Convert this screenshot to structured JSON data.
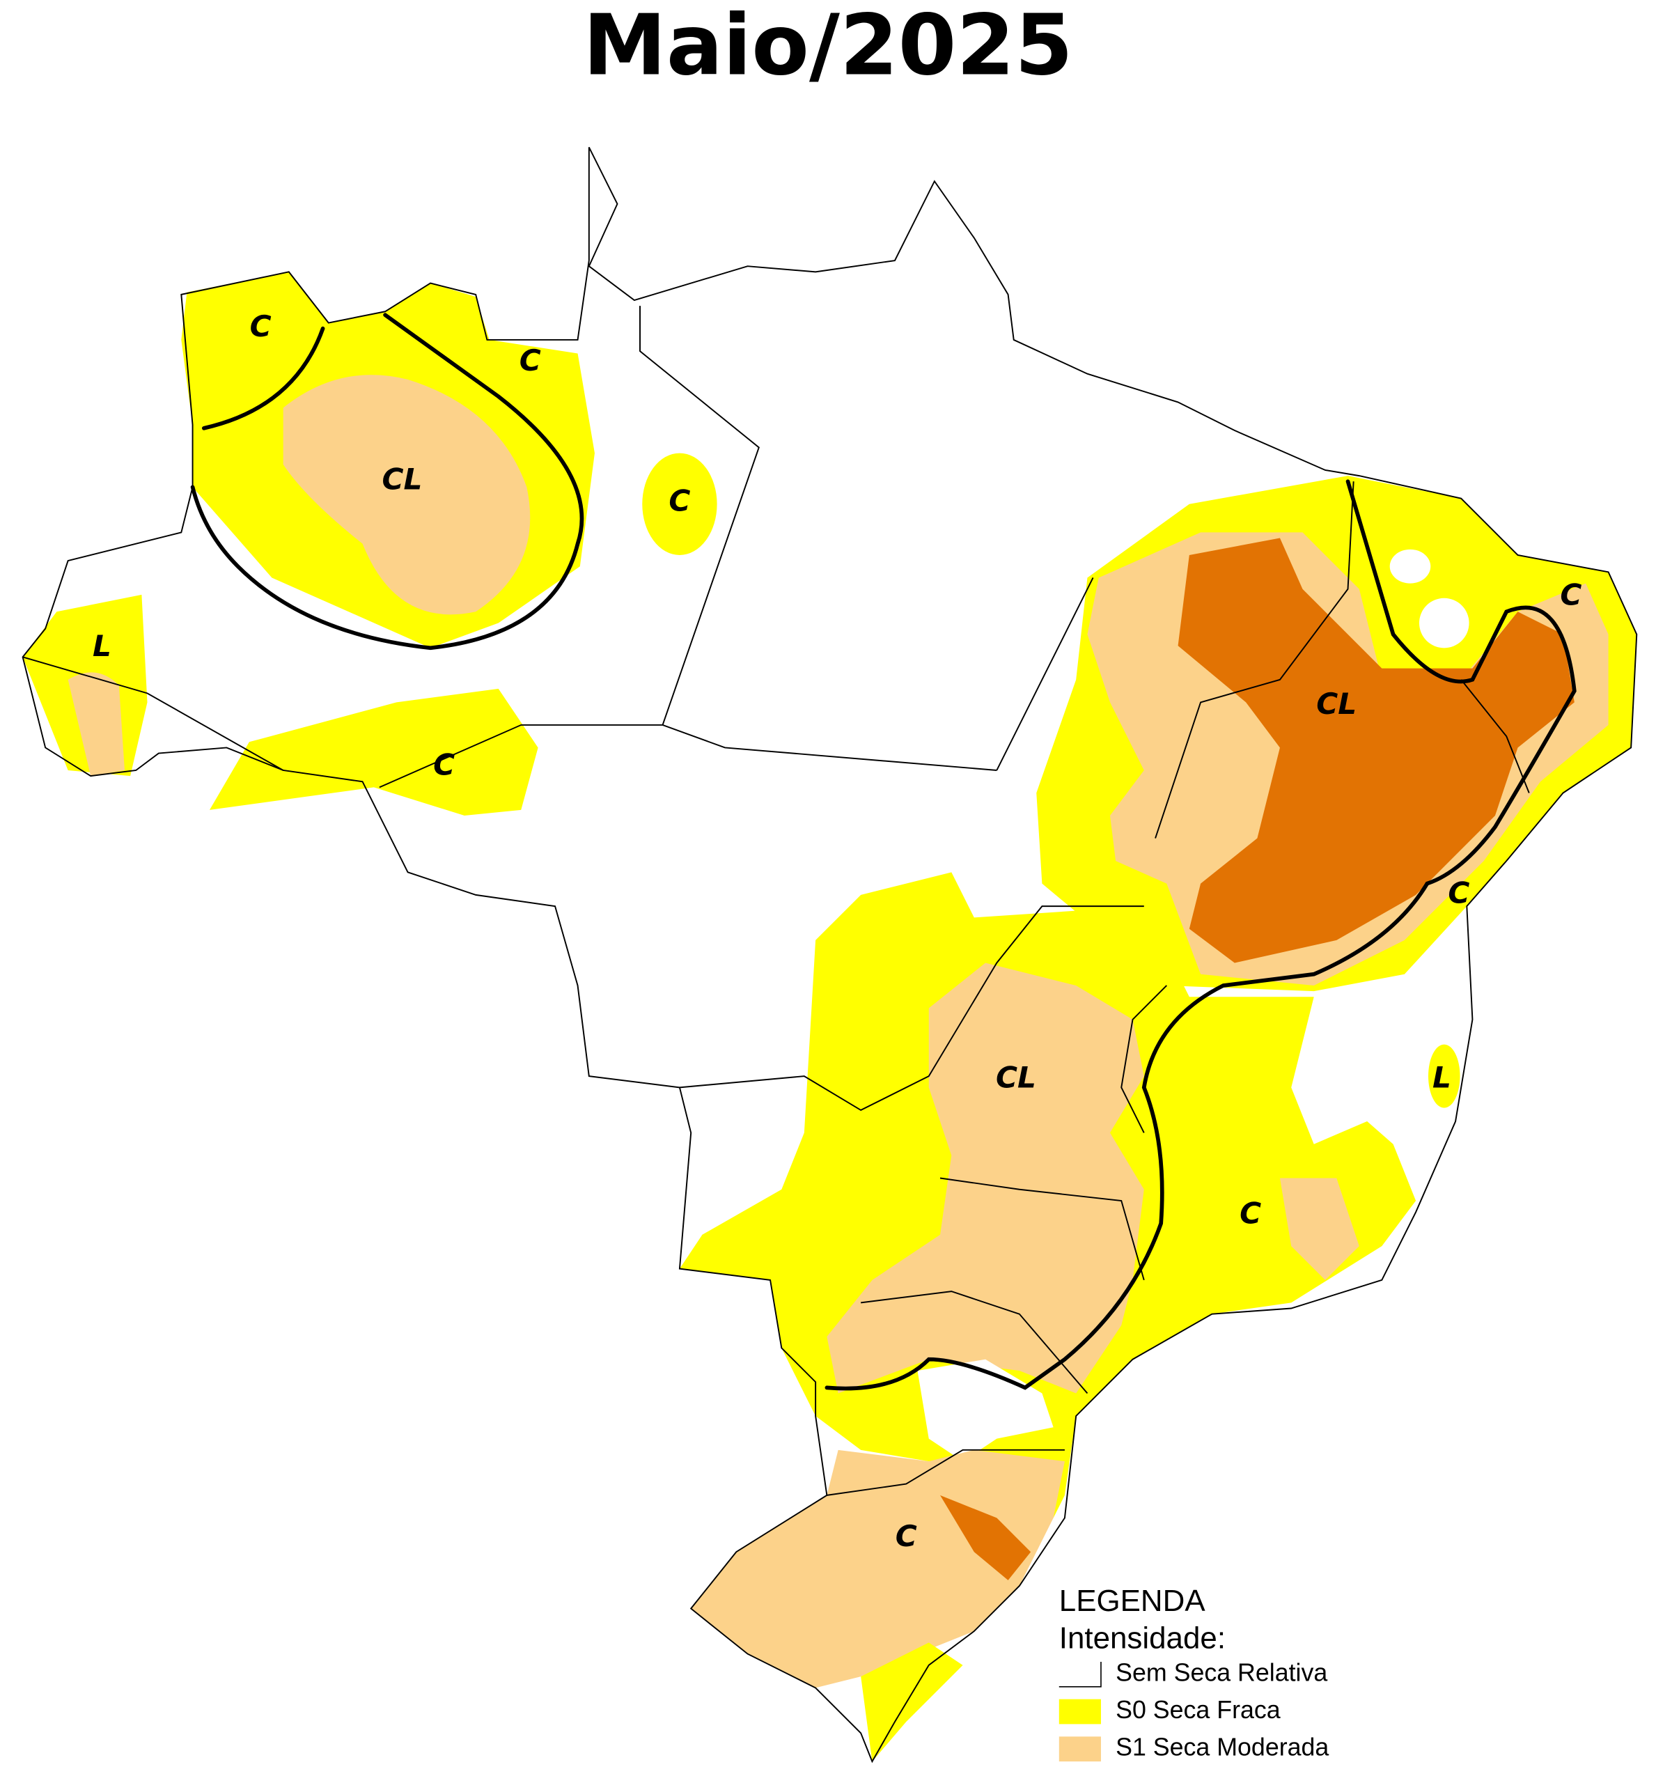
{
  "header": {
    "title": "Maio/2025"
  },
  "map_labels": [
    "C",
    "C",
    "CL",
    "C",
    "L",
    "C",
    "CL",
    "C",
    "C",
    "CL",
    "L",
    "C",
    "C"
  ],
  "legend": {
    "title": "LEGENDA",
    "subtitle": "Intensidade:",
    "items": [
      {
        "label": "Sem Seca Relativa",
        "color": "#ffffff"
      },
      {
        "label": "S0 Seca Fraca",
        "color": "#ffff00"
      },
      {
        "label": "S1 Seca Moderada",
        "color": "#fcd28a"
      }
    ]
  }
}
